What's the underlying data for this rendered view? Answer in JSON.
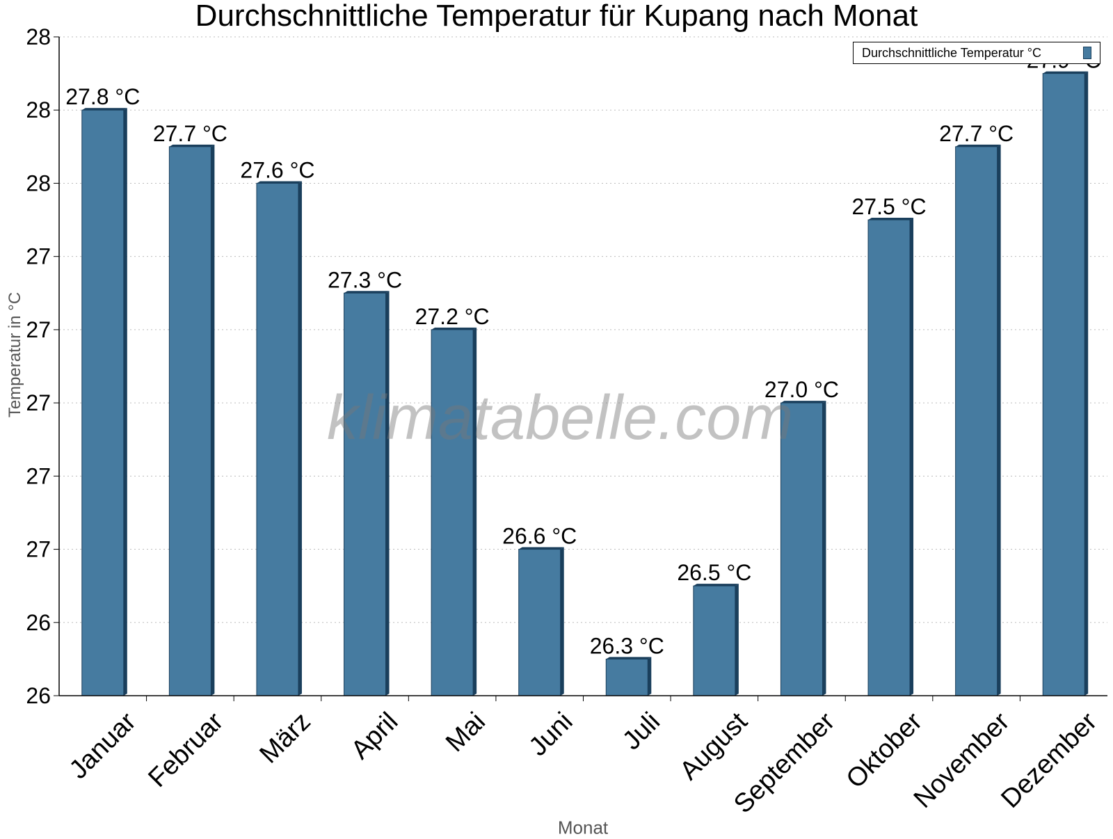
{
  "chart_data": {
    "type": "bar",
    "title": "Durchschnittliche Temperatur für Kupang nach Monat",
    "xlabel": "Monat",
    "ylabel": "Temperatur in °C",
    "categories": [
      "Januar",
      "Februar",
      "März",
      "April",
      "Mai",
      "Juni",
      "Juli",
      "August",
      "September",
      "Oktober",
      "November",
      "Dezember"
    ],
    "series": [
      {
        "name": "Durchschnittliche Temperatur °C",
        "values": [
          27.8,
          27.7,
          27.6,
          27.3,
          27.2,
          26.6,
          26.3,
          26.5,
          27.0,
          27.5,
          27.7,
          27.9
        ],
        "value_labels": [
          "27.8 °C",
          "27.7 °C",
          "27.6 °C",
          "27.3 °C",
          "27.2 °C",
          "26.6 °C",
          "26.3 °C",
          "26.5 °C",
          "27.0 °C",
          "27.5 °C",
          "27.7 °C",
          "27.9 °C"
        ]
      }
    ],
    "ylim": [
      26.2,
      28.0
    ],
    "yticks": [
      26.2,
      26.4,
      26.6,
      26.8,
      27.0,
      27.2,
      27.4,
      27.6,
      27.8,
      28.0
    ],
    "ytick_labels": [
      "26",
      "26",
      "27",
      "27",
      "27",
      "27",
      "27",
      "28",
      "28",
      "28"
    ],
    "grid": true,
    "legend_position": "top-right",
    "bar_color": "#467ba0",
    "bar_edge_color": "#1a3f5c"
  },
  "watermark": "klimatabelle.com"
}
